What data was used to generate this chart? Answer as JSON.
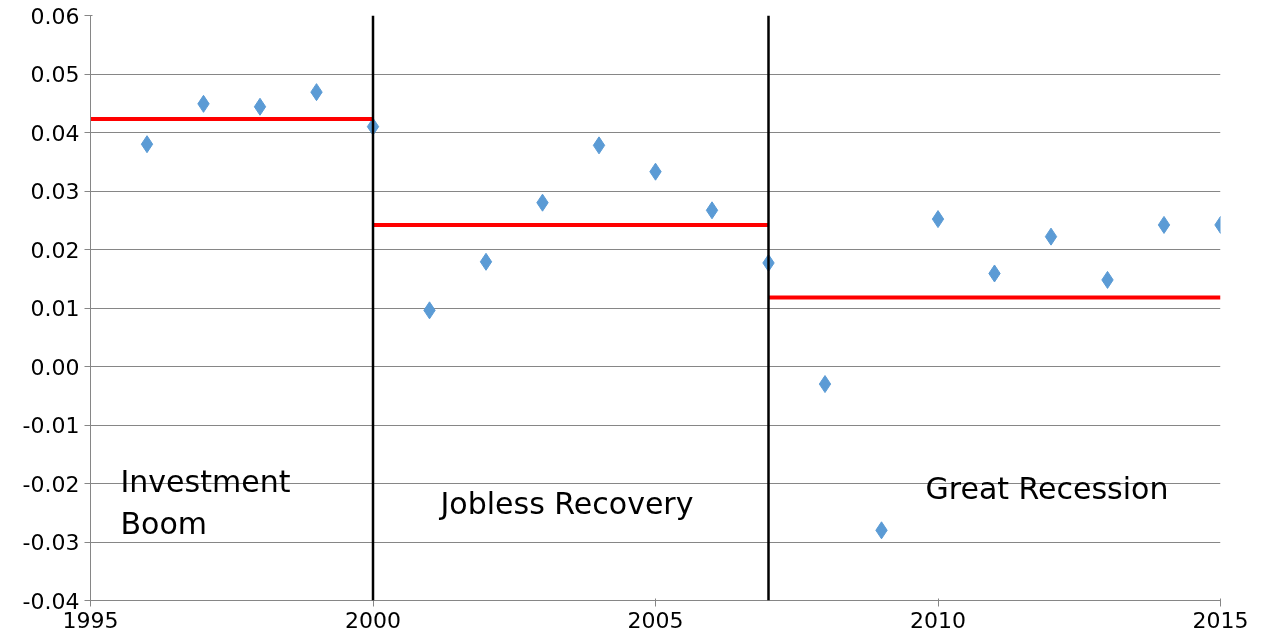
{
  "chart_data": {
    "type": "scatter",
    "x": [
      1996,
      1997,
      1998,
      1999,
      2000,
      2001,
      2002,
      2003,
      2004,
      2005,
      2006,
      2007,
      2008,
      2009,
      2010,
      2011,
      2012,
      2013,
      2014,
      2015
    ],
    "series": [
      {
        "color": "#5b9bd5",
        "marker": "diamond",
        "values": [
          0.038,
          0.0449,
          0.0444,
          0.0469,
          0.041,
          0.0096,
          0.0179,
          0.028,
          0.0378,
          0.0333,
          0.0267,
          0.0177,
          -0.003,
          -0.028,
          0.0252,
          0.0159,
          0.0222,
          0.0148,
          0.0242,
          0.0242
        ]
      },
      {
        "type": "line",
        "color": "#ff0000",
        "x": [
          1995,
          2000
        ],
        "values": [
          0.0423,
          0.0423
        ]
      },
      {
        "type": "line",
        "color": "#ff0000",
        "x": [
          2000,
          2007
        ],
        "values": [
          0.0242,
          0.0242
        ]
      },
      {
        "type": "line",
        "color": "#ff0000",
        "x": [
          2007,
          2015
        ],
        "values": [
          0.0118,
          0.0118
        ]
      }
    ],
    "xlim": [
      1995,
      2015
    ],
    "xticks": [
      1995,
      2000,
      2005,
      2010,
      2015
    ],
    "ylim": [
      -0.04,
      0.06
    ],
    "yticks": [
      {
        "value": 0.06,
        "label": "0.06"
      },
      {
        "value": 0.05,
        "label": "0.05"
      },
      {
        "value": 0.04,
        "label": "0.04"
      },
      {
        "value": 0.03,
        "label": "0.03"
      },
      {
        "value": 0.02,
        "label": "0.02"
      },
      {
        "value": 0.01,
        "label": "0.01"
      },
      {
        "value": 0,
        "label": "0.00"
      },
      {
        "value": -0.01,
        "label": "-0.01"
      },
      {
        "value": -0.02,
        "label": "-0.02"
      },
      {
        "value": -0.03,
        "label": "-0.03"
      },
      {
        "value": -0.04,
        "label": "-0.04"
      }
    ],
    "ref_lines": [
      {
        "axis": "x",
        "value": 2000,
        "color": "#000000"
      },
      {
        "axis": "x",
        "value": 2007,
        "color": "#000000"
      }
    ],
    "annotations": [
      "Investment Boom",
      "Jobless Recovery",
      "Great Recession"
    ],
    "grid": "y",
    "line_style": "solid"
  }
}
